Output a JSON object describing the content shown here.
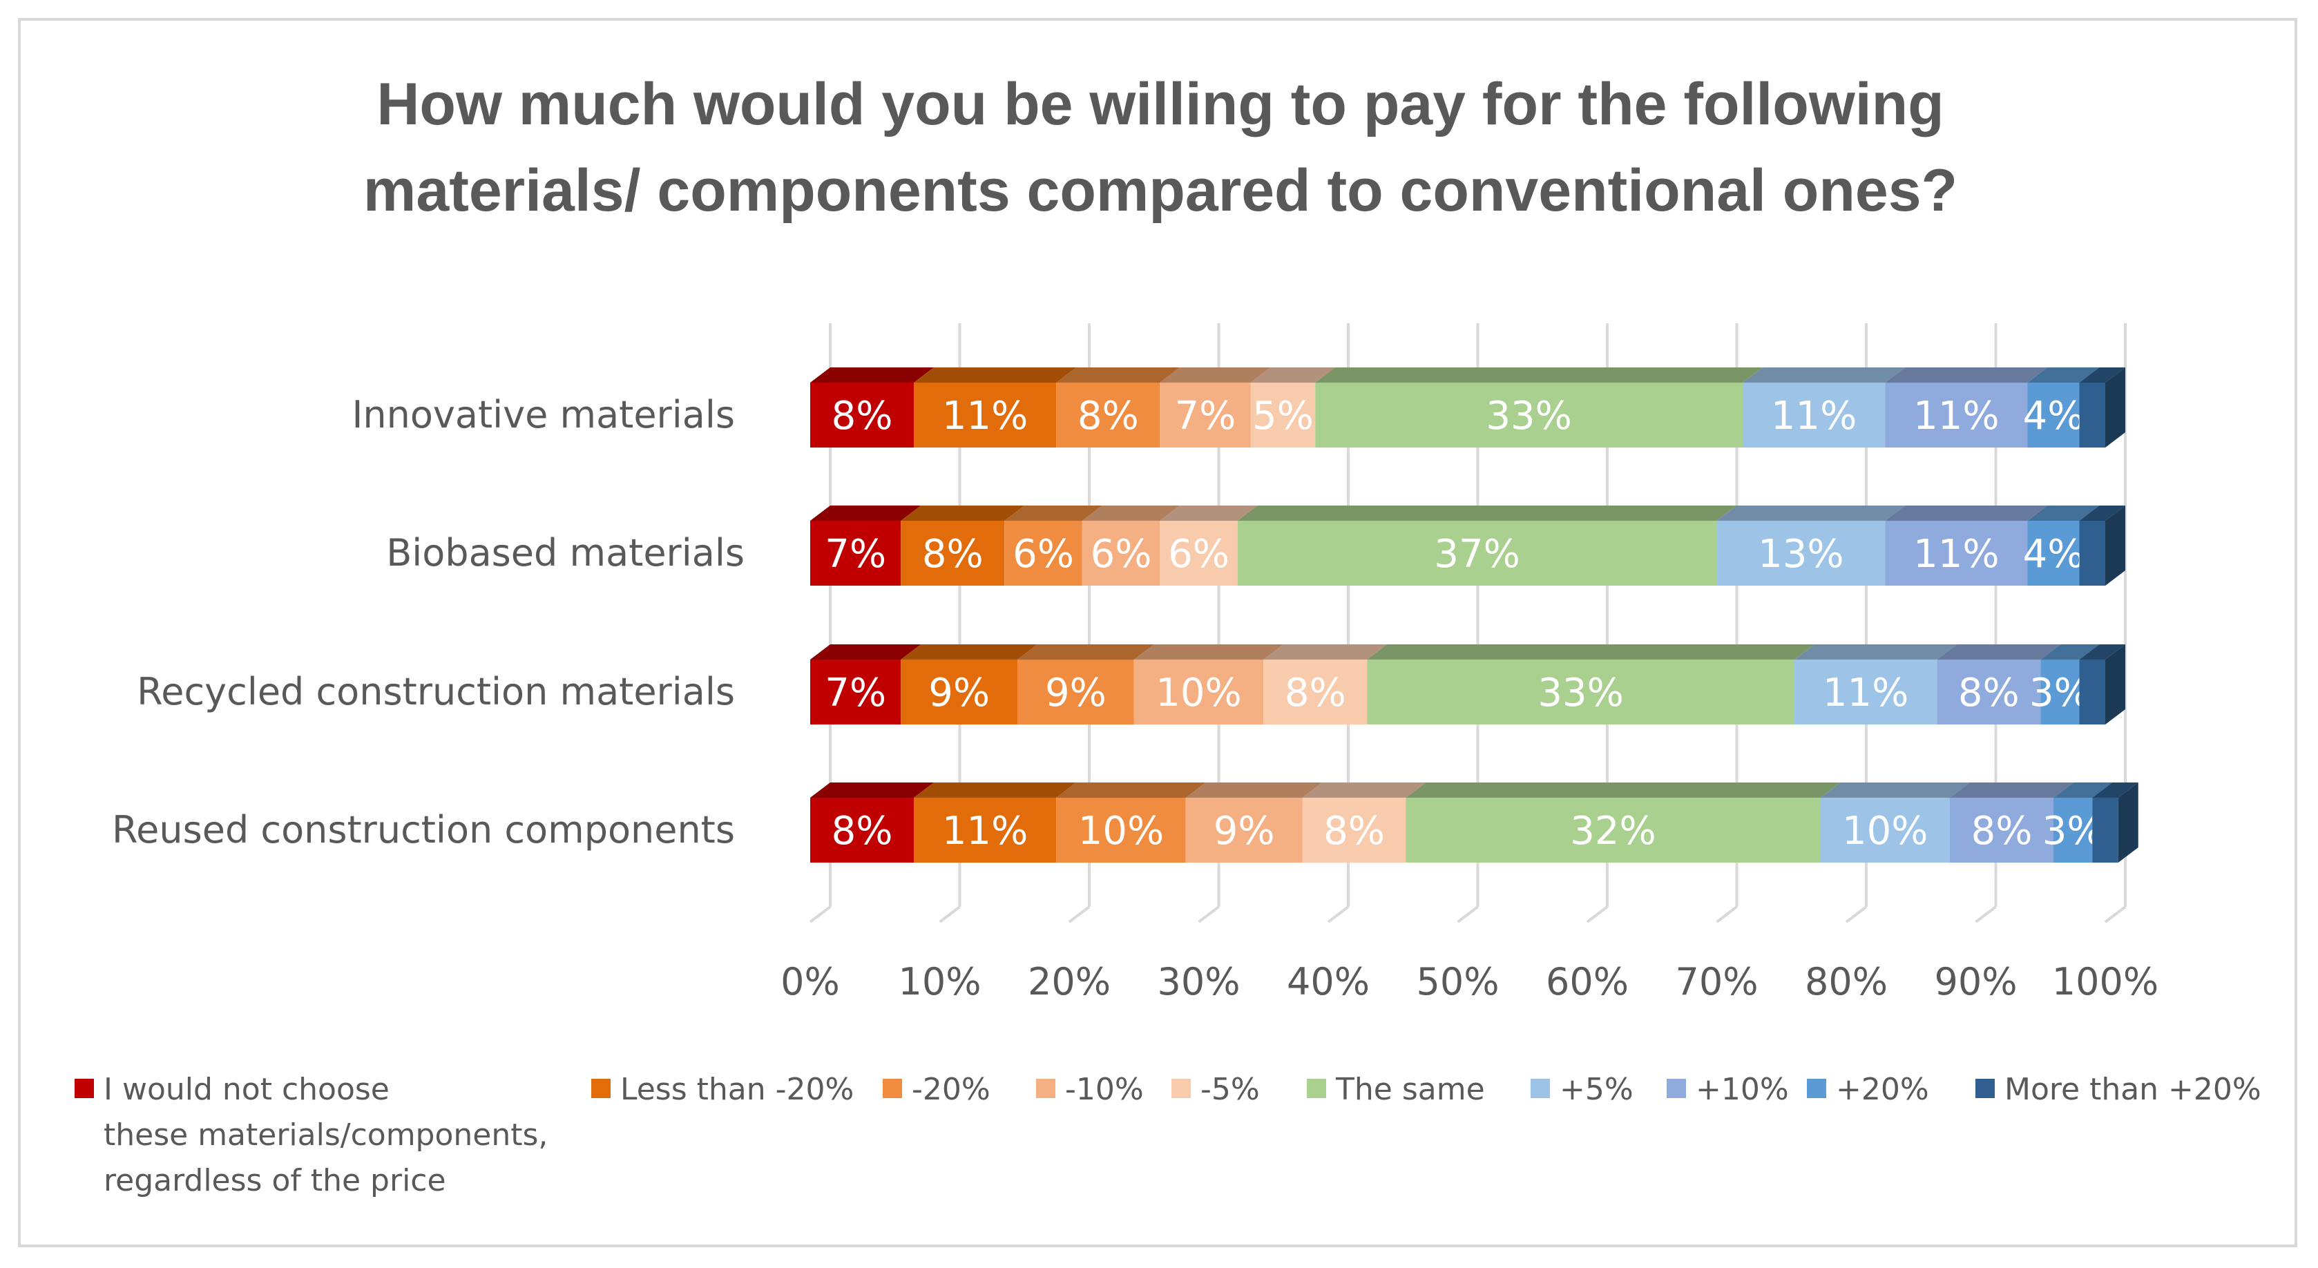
{
  "chart_data": {
    "type": "bar",
    "orientation": "horizontal",
    "stacked": "100%",
    "style": "3d",
    "title": "How much would you be willing to pay for the following materials/ components compared to conventional ones?",
    "title_lines": [
      "How much would you be willing to pay for the following",
      "materials/ components compared to conventional ones?"
    ],
    "categories": [
      "Innovative materials",
      "Biobased materials",
      "Recycled construction materials",
      "Reused construction components"
    ],
    "xlim": [
      0,
      100
    ],
    "x_ticks": [
      "0%",
      "10%",
      "20%",
      "30%",
      "40%",
      "50%",
      "60%",
      "70%",
      "80%",
      "90%",
      "100%"
    ],
    "grid": true,
    "legend_position": "bottom",
    "series": [
      {
        "name": "I would not choose these materials/components, regardless of the price",
        "legend_lines": [
          "I would not choose",
          "these materials/components,",
          "regardless of the price"
        ],
        "color": "#c00000",
        "values": [
          8,
          7,
          7,
          8
        ],
        "labels": [
          "8%",
          "7%",
          "7%",
          "8%"
        ]
      },
      {
        "name": "Less than -20%",
        "color": "#e36c0a",
        "values": [
          11,
          8,
          9,
          11
        ],
        "labels": [
          "11%",
          "8%",
          "9%",
          "11%"
        ]
      },
      {
        "name": "-20%",
        "color": "#f08c40",
        "values": [
          8,
          6,
          9,
          10
        ],
        "labels": [
          "8%",
          "6%",
          "9%",
          "10%"
        ]
      },
      {
        "name": "-10%",
        "color": "#f4b083",
        "values": [
          7,
          6,
          10,
          9
        ],
        "labels": [
          "7%",
          "6%",
          "10%",
          "9%"
        ]
      },
      {
        "name": "-5%",
        "color": "#f8cbad",
        "values": [
          5,
          6,
          8,
          8
        ],
        "labels": [
          "5%",
          "6%",
          "8%",
          "8%"
        ]
      },
      {
        "name": "The same",
        "color": "#a9d08e",
        "values": [
          33,
          37,
          33,
          32
        ],
        "labels": [
          "33%",
          "37%",
          "33%",
          "32%"
        ]
      },
      {
        "name": "+5%",
        "color": "#9dc3e6",
        "values": [
          11,
          13,
          11,
          10
        ],
        "labels": [
          "11%",
          "13%",
          "11%",
          "10%"
        ]
      },
      {
        "name": "+10%",
        "color": "#8faadc",
        "values": [
          11,
          11,
          8,
          8
        ],
        "labels": [
          "11%",
          "11%",
          "8%",
          "8%"
        ]
      },
      {
        "name": "+20%",
        "color": "#5b9bd5",
        "values": [
          4,
          4,
          3,
          3
        ],
        "labels": [
          "4%",
          "4%",
          "3%",
          "3%"
        ]
      },
      {
        "name": "More than +20%",
        "color": "#2e5f8f",
        "values": [
          2,
          2,
          2,
          2
        ],
        "labels": [
          "",
          "",
          "",
          ""
        ]
      }
    ]
  }
}
